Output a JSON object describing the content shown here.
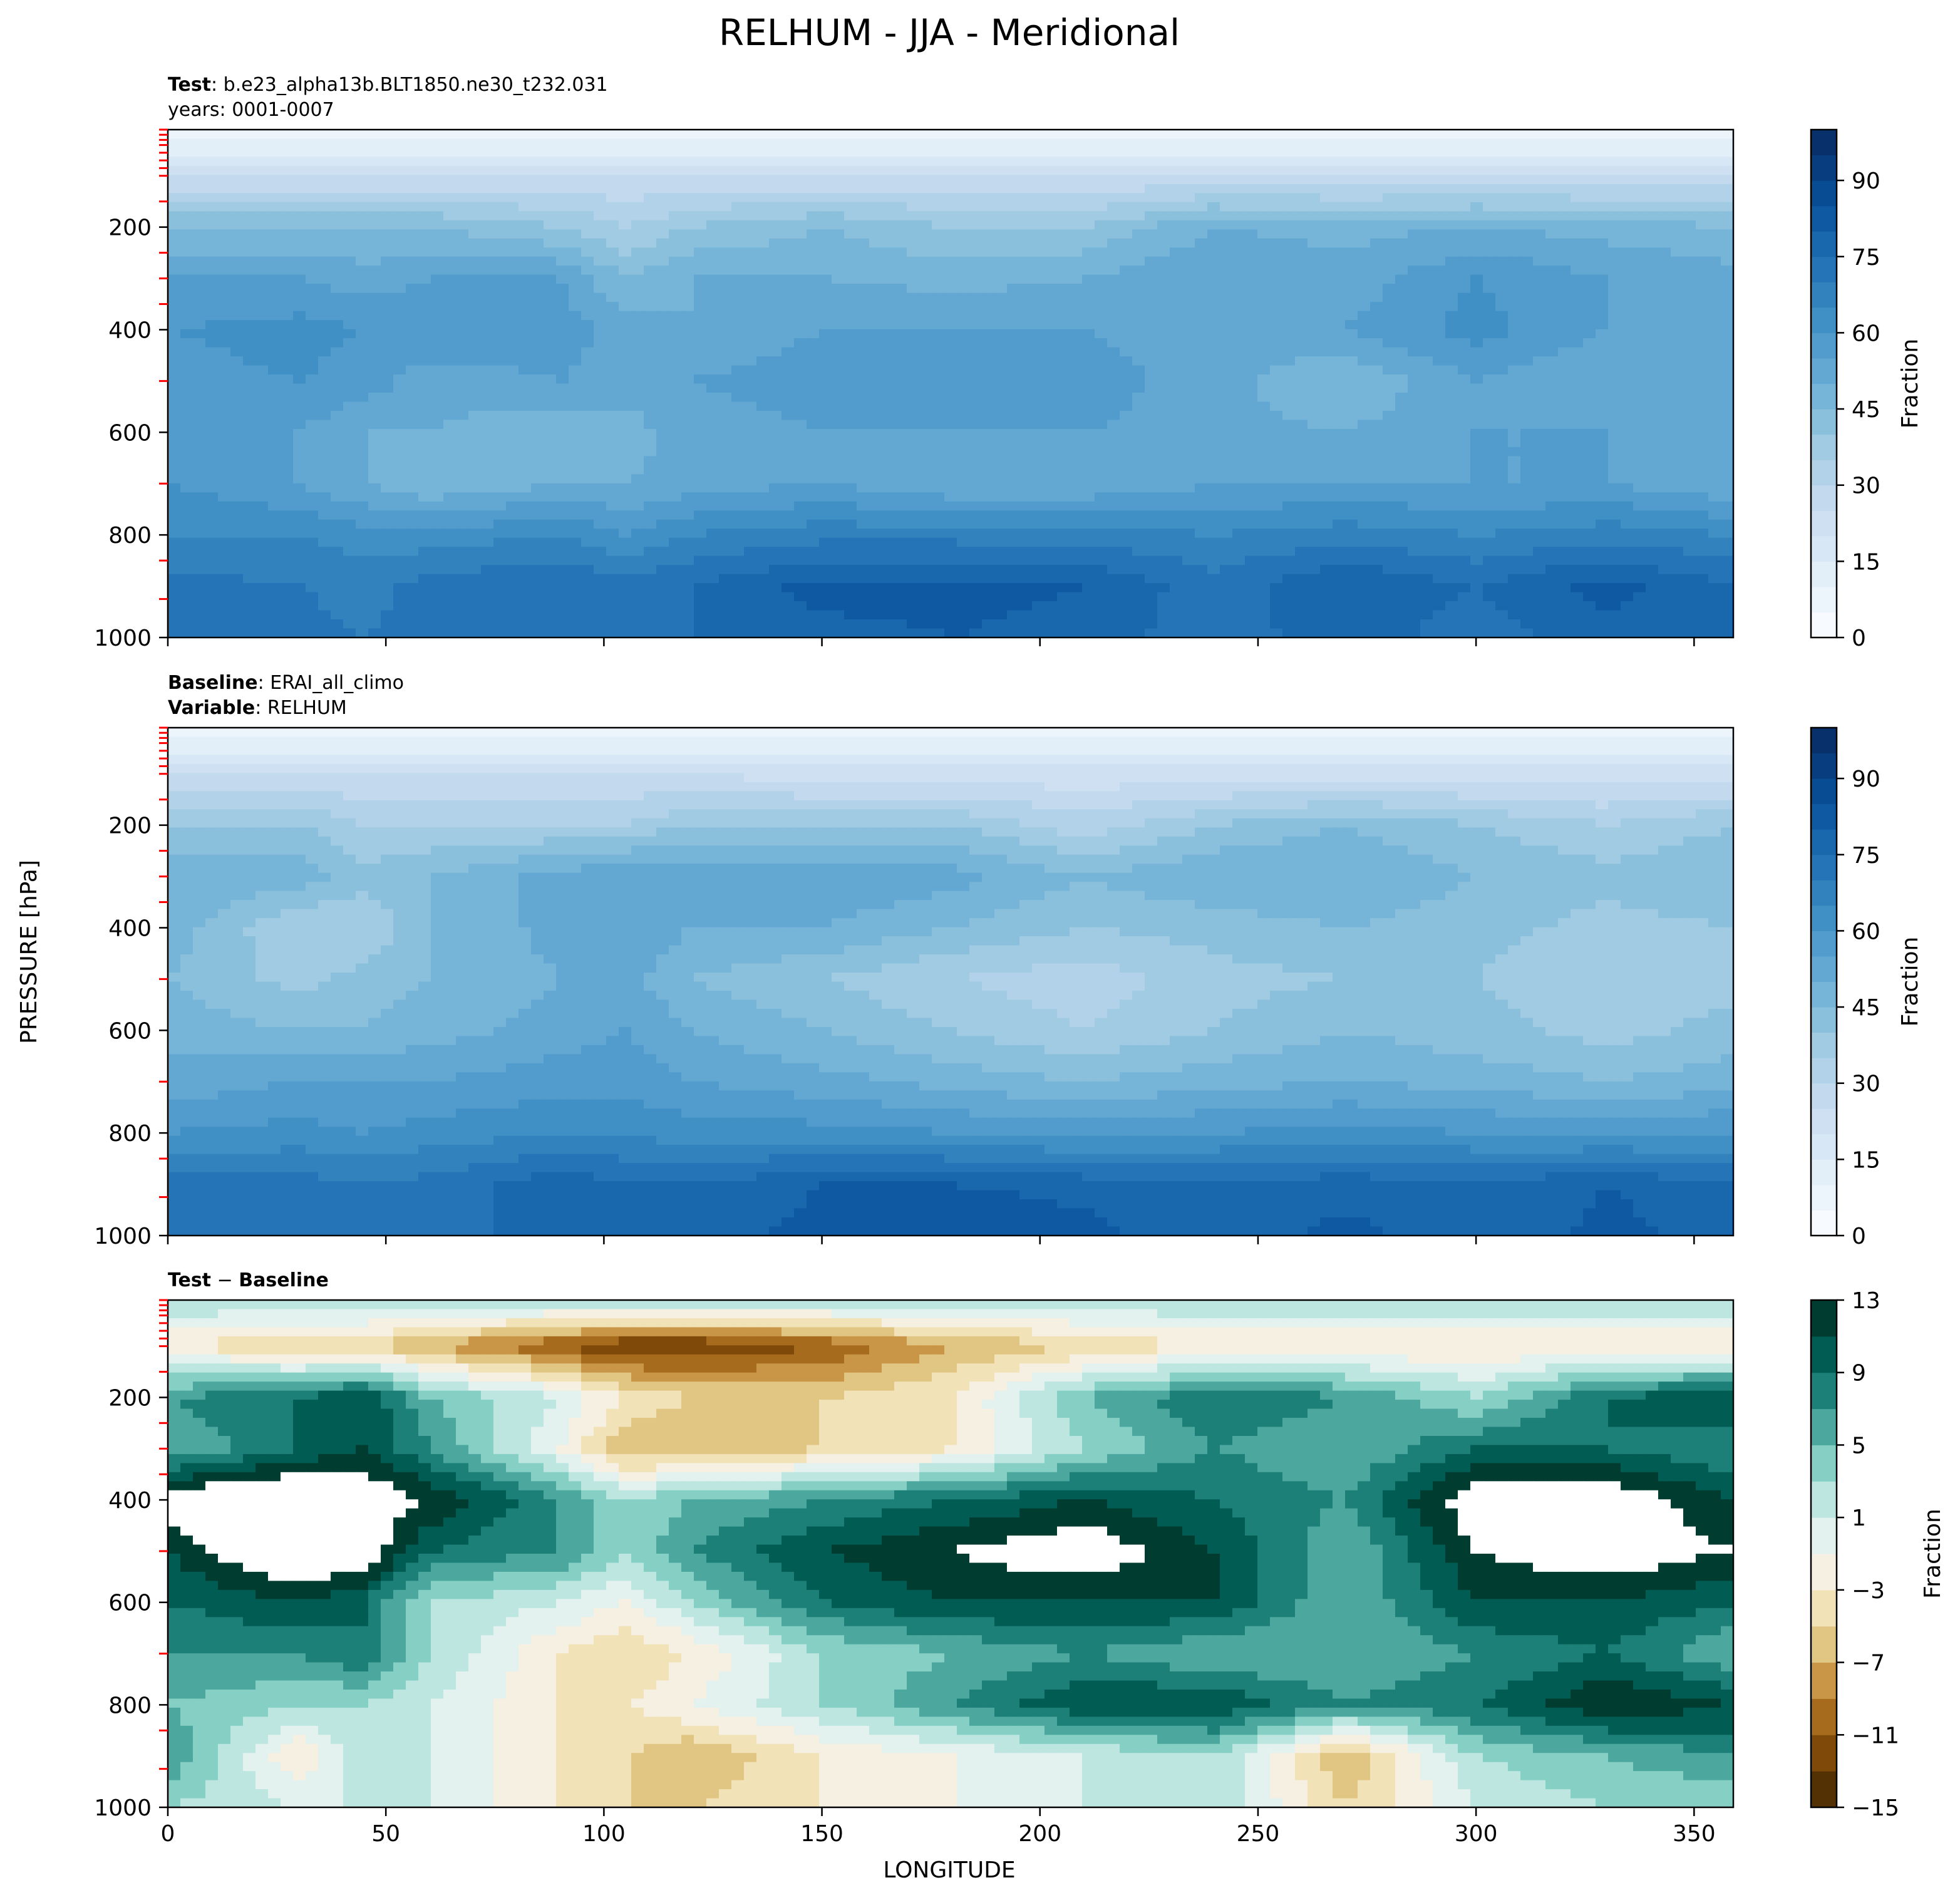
{
  "figure": {
    "title": "RELHUM - JJA - Meridional",
    "xlabel": "LONGITUDE",
    "ylabel": "PRESSURE [hPa]"
  },
  "colors": {
    "seq_low": "#f7fbff",
    "seq_mid": "#6baed6",
    "seq_high": "#08306b",
    "div_neg": "#543005",
    "div_mid": "#f5f5f5",
    "div_pos": "#003c30",
    "tick_red": "#ff0000"
  },
  "chart_data": [
    {
      "type": "heatmap",
      "subtitle_bold": "Test",
      "subtitle_text": ": b.e23_alpha13b.BLT1850.ne30_t232.031",
      "subtitle_line2": "years: 0001-0007",
      "x": [
        0,
        30,
        45,
        60,
        90,
        105,
        120,
        150,
        180,
        210,
        240,
        270,
        300,
        330,
        359
      ],
      "y": [
        10,
        100,
        200,
        300,
        400,
        500,
        600,
        700,
        800,
        900,
        1000
      ],
      "z": [
        [
          5,
          5,
          5,
          5,
          5,
          5,
          5,
          5,
          5,
          5,
          5,
          5,
          5,
          5,
          5
        ],
        [
          25,
          25,
          25,
          25,
          25,
          25,
          25,
          25,
          25,
          25,
          25,
          25,
          25,
          25,
          25
        ],
        [
          45,
          45,
          45,
          45,
          40,
          35,
          40,
          45,
          40,
          40,
          50,
          48,
          50,
          48,
          45
        ],
        [
          55,
          55,
          52,
          55,
          55,
          45,
          50,
          50,
          48,
          50,
          55,
          52,
          60,
          55,
          52
        ],
        [
          60,
          62,
          60,
          60,
          58,
          52,
          50,
          55,
          55,
          55,
          52,
          55,
          62,
          55,
          52
        ],
        [
          58,
          60,
          58,
          52,
          55,
          52,
          55,
          58,
          60,
          58,
          52,
          45,
          55,
          50,
          55
        ],
        [
          58,
          55,
          50,
          50,
          45,
          48,
          52,
          55,
          55,
          55,
          52,
          50,
          55,
          55,
          50
        ],
        [
          60,
          55,
          50,
          45,
          50,
          50,
          52,
          55,
          50,
          50,
          55,
          55,
          55,
          55,
          50
        ],
        [
          65,
          65,
          62,
          62,
          65,
          60,
          65,
          68,
          68,
          68,
          65,
          68,
          65,
          68,
          65
        ],
        [
          72,
          70,
          68,
          72,
          75,
          72,
          75,
          82,
          82,
          80,
          72,
          80,
          75,
          82,
          75
        ],
        [
          75,
          72,
          70,
          72,
          75,
          72,
          75,
          78,
          80,
          78,
          72,
          78,
          72,
          78,
          75
        ]
      ],
      "levels": [
        0,
        5,
        10,
        15,
        20,
        25,
        30,
        35,
        40,
        45,
        50,
        55,
        60,
        65,
        70,
        75,
        80,
        85,
        90,
        95,
        100
      ],
      "colormap": "Blues",
      "colorbar_label": "Fraction",
      "colorbar_ticks": [
        0,
        15,
        30,
        45,
        60,
        75,
        90
      ],
      "xlim": [
        0,
        359
      ],
      "ylim": [
        1000,
        10
      ],
      "xticks": [
        0,
        50,
        100,
        150,
        200,
        250,
        300,
        350
      ],
      "yticks": [
        200,
        400,
        600,
        800,
        1000
      ],
      "xticklabels_visible": false
    },
    {
      "type": "heatmap",
      "subtitle_bold": "Baseline",
      "subtitle_text": ": ERAI_all_climo",
      "subtitle_bold2": "Variable",
      "subtitle_text2": ": RELHUM",
      "x": [
        0,
        30,
        45,
        60,
        90,
        105,
        120,
        150,
        180,
        210,
        240,
        270,
        300,
        330,
        359
      ],
      "y": [
        10,
        100,
        200,
        300,
        400,
        500,
        600,
        700,
        800,
        900,
        1000
      ],
      "z": [
        [
          5,
          5,
          5,
          5,
          5,
          5,
          5,
          5,
          5,
          5,
          5,
          5,
          5,
          5,
          5
        ],
        [
          25,
          25,
          25,
          25,
          25,
          25,
          25,
          22,
          22,
          22,
          22,
          22,
          22,
          22,
          22
        ],
        [
          40,
          40,
          35,
          35,
          35,
          35,
          40,
          40,
          40,
          32,
          40,
          45,
          40,
          35,
          40
        ],
        [
          50,
          48,
          42,
          45,
          52,
          55,
          55,
          55,
          52,
          45,
          50,
          50,
          45,
          42,
          45
        ],
        [
          48,
          35,
          35,
          45,
          52,
          55,
          50,
          50,
          45,
          40,
          42,
          45,
          42,
          38,
          40
        ],
        [
          45,
          38,
          42,
          45,
          50,
          52,
          45,
          40,
          35,
          32,
          38,
          40,
          40,
          35,
          38
        ],
        [
          48,
          45,
          45,
          48,
          52,
          55,
          50,
          45,
          40,
          35,
          40,
          45,
          42,
          38,
          42
        ],
        [
          52,
          55,
          55,
          55,
          58,
          58,
          55,
          52,
          48,
          45,
          48,
          50,
          48,
          45,
          48
        ],
        [
          60,
          62,
          60,
          62,
          65,
          65,
          62,
          62,
          60,
          58,
          60,
          62,
          60,
          58,
          60
        ],
        [
          72,
          72,
          70,
          72,
          78,
          75,
          75,
          80,
          80,
          78,
          75,
          78,
          75,
          80,
          75
        ],
        [
          75,
          75,
          72,
          72,
          78,
          78,
          78,
          82,
          85,
          82,
          75,
          82,
          75,
          82,
          78
        ]
      ],
      "levels": [
        0,
        5,
        10,
        15,
        20,
        25,
        30,
        35,
        40,
        45,
        50,
        55,
        60,
        65,
        70,
        75,
        80,
        85,
        90,
        95,
        100
      ],
      "colormap": "Blues",
      "colorbar_label": "Fraction",
      "colorbar_ticks": [
        0,
        15,
        30,
        45,
        60,
        75,
        90
      ],
      "xlim": [
        0,
        359
      ],
      "ylim": [
        1000,
        10
      ],
      "xticks": [
        0,
        50,
        100,
        150,
        200,
        250,
        300,
        350
      ],
      "yticks": [
        200,
        400,
        600,
        800,
        1000
      ],
      "xticklabels_visible": false
    },
    {
      "type": "heatmap",
      "subtitle_bold": "Test",
      "subtitle_text": " − ",
      "subtitle_bold2": "Baseline",
      "x": [
        0,
        30,
        45,
        60,
        90,
        105,
        120,
        150,
        180,
        210,
        240,
        270,
        300,
        330,
        359
      ],
      "y": [
        10,
        100,
        200,
        300,
        400,
        500,
        600,
        700,
        800,
        900,
        1000
      ],
      "z": [
        [
          3,
          3,
          3,
          3,
          3,
          3,
          3,
          3,
          3,
          3,
          3,
          3,
          3,
          3,
          3
        ],
        [
          -3,
          -5,
          -5,
          -7,
          -11,
          -13,
          -13,
          -11,
          -7,
          -5,
          -3,
          -3,
          -3,
          -3,
          -3
        ],
        [
          7,
          9,
          11,
          5,
          1,
          -3,
          -5,
          -5,
          -3,
          5,
          9,
          7,
          3,
          9,
          11
        ],
        [
          5,
          9,
          11,
          7,
          -1,
          -7,
          -7,
          -5,
          -3,
          3,
          7,
          5,
          9,
          9,
          7
        ],
        [
          15,
          17,
          15,
          13,
          7,
          3,
          5,
          7,
          9,
          11,
          9,
          7,
          15,
          15,
          11
        ],
        [
          11,
          17,
          15,
          9,
          7,
          3,
          7,
          11,
          13,
          15,
          11,
          5,
          13,
          15,
          13
        ],
        [
          9,
          11,
          9,
          3,
          1,
          -1,
          3,
          9,
          11,
          11,
          11,
          5,
          11,
          11,
          9
        ],
        [
          7,
          7,
          9,
          3,
          -3,
          -5,
          -3,
          3,
          5,
          7,
          5,
          5,
          7,
          9,
          5
        ],
        [
          5,
          3,
          3,
          1,
          -3,
          -3,
          -1,
          3,
          7,
          11,
          11,
          7,
          9,
          13,
          11
        ],
        [
          7,
          -3,
          3,
          1,
          -3,
          -5,
          -7,
          -3,
          -1,
          1,
          3,
          -7,
          3,
          5,
          7
        ],
        [
          3,
          1,
          1,
          1,
          -3,
          -5,
          -5,
          -3,
          -1,
          1,
          3,
          -5,
          1,
          3,
          3
        ]
      ],
      "levels": [
        -15,
        -13,
        -11,
        -9,
        -7,
        -5,
        -3,
        -1,
        1,
        3,
        5,
        7,
        9,
        11,
        13
      ],
      "colormap": "BrBG",
      "colorbar_label": "Fraction",
      "colorbar_ticks": [
        -15,
        -11,
        -7,
        -3,
        1,
        5,
        9,
        13
      ],
      "xlim": [
        0,
        359
      ],
      "ylim": [
        1000,
        10
      ],
      "xticks": [
        0,
        50,
        100,
        150,
        200,
        250,
        300,
        350
      ],
      "yticks": [
        200,
        400,
        600,
        800,
        1000
      ],
      "xticklabels_visible": true
    }
  ]
}
